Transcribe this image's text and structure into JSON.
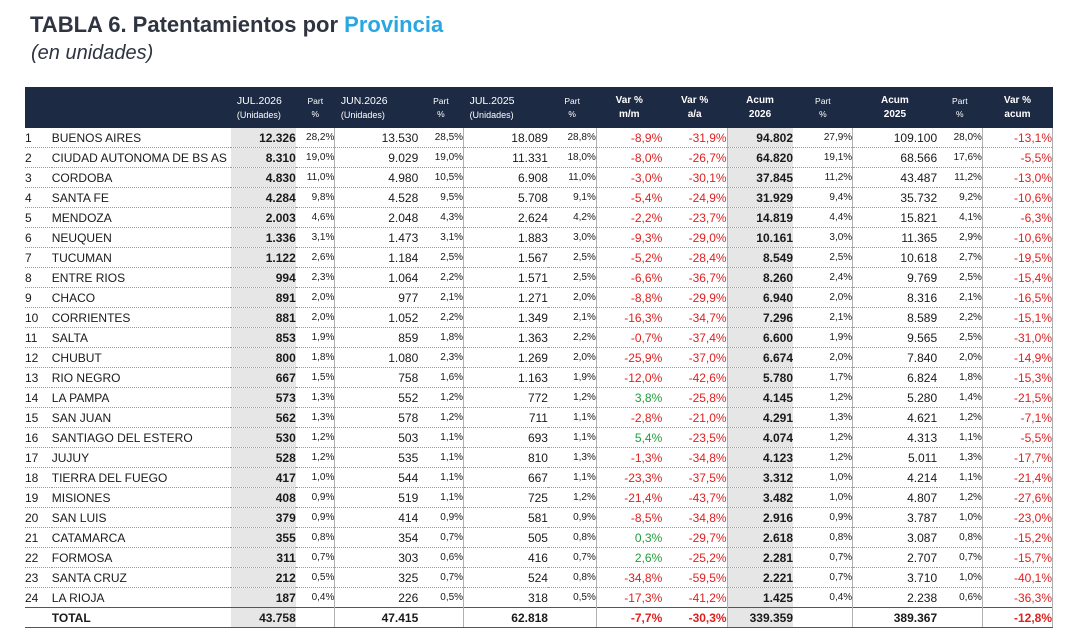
{
  "header": {
    "title_main": "TABLA 6. Patentamientos por ",
    "title_accent": "Provincia",
    "subtitle": "(en unidades)"
  },
  "columns": {
    "jul2026": "JUL.2026",
    "unidades1": "(Unidades)",
    "part": "Part",
    "pct": "%",
    "jun2026": "JUN.2026",
    "unidades2": "(Unidades)",
    "jul2025": "JUL.2025",
    "unidades3": "(Unidades)",
    "varmm1": "Var %",
    "varmm2": "m/m",
    "varaa1": "Var %",
    "varaa2": "a/a",
    "acum26_1": "Acum",
    "acum26_2": "2026",
    "acum25_1": "Acum",
    "acum25_2": "2025",
    "varac1": "Var %",
    "varac2": "acum"
  },
  "colors": {
    "header_bg": "#1d2a44",
    "accent": "#2aa6e0",
    "negative": "#e02020",
    "positive": "#1e9e3a",
    "shade": "#e6e6e6"
  },
  "rows": [
    [
      "1",
      "BUENOS AIRES",
      "12.326",
      "28,2%",
      "13.530",
      "28,5%",
      "18.089",
      "28,8%",
      "-8,9%",
      "-31,9%",
      "94.802",
      "27,9%",
      "109.100",
      "28,0%",
      "-13,1%"
    ],
    [
      "2",
      "CIUDAD AUTONOMA DE BS AS",
      "8.310",
      "19,0%",
      "9.029",
      "19,0%",
      "11.331",
      "18,0%",
      "-8,0%",
      "-26,7%",
      "64.820",
      "19,1%",
      "68.566",
      "17,6%",
      "-5,5%"
    ],
    [
      "3",
      "CORDOBA",
      "4.830",
      "11,0%",
      "4.980",
      "10,5%",
      "6.908",
      "11,0%",
      "-3,0%",
      "-30,1%",
      "37.845",
      "11,2%",
      "43.487",
      "11,2%",
      "-13,0%"
    ],
    [
      "4",
      "SANTA FE",
      "4.284",
      "9,8%",
      "4.528",
      "9,5%",
      "5.708",
      "9,1%",
      "-5,4%",
      "-24,9%",
      "31.929",
      "9,4%",
      "35.732",
      "9,2%",
      "-10,6%"
    ],
    [
      "5",
      "MENDOZA",
      "2.003",
      "4,6%",
      "2.048",
      "4,3%",
      "2.624",
      "4,2%",
      "-2,2%",
      "-23,7%",
      "14.819",
      "4,4%",
      "15.821",
      "4,1%",
      "-6,3%"
    ],
    [
      "6",
      "NEUQUEN",
      "1.336",
      "3,1%",
      "1.473",
      "3,1%",
      "1.883",
      "3,0%",
      "-9,3%",
      "-29,0%",
      "10.161",
      "3,0%",
      "11.365",
      "2,9%",
      "-10,6%"
    ],
    [
      "7",
      "TUCUMAN",
      "1.122",
      "2,6%",
      "1.184",
      "2,5%",
      "1.567",
      "2,5%",
      "-5,2%",
      "-28,4%",
      "8.549",
      "2,5%",
      "10.618",
      "2,7%",
      "-19,5%"
    ],
    [
      "8",
      "ENTRE RIOS",
      "994",
      "2,3%",
      "1.064",
      "2,2%",
      "1.571",
      "2,5%",
      "-6,6%",
      "-36,7%",
      "8.260",
      "2,4%",
      "9.769",
      "2,5%",
      "-15,4%"
    ],
    [
      "9",
      "CHACO",
      "891",
      "2,0%",
      "977",
      "2,1%",
      "1.271",
      "2,0%",
      "-8,8%",
      "-29,9%",
      "6.940",
      "2,0%",
      "8.316",
      "2,1%",
      "-16,5%"
    ],
    [
      "10",
      "CORRIENTES",
      "881",
      "2,0%",
      "1.052",
      "2,2%",
      "1.349",
      "2,1%",
      "-16,3%",
      "-34,7%",
      "7.296",
      "2,1%",
      "8.589",
      "2,2%",
      "-15,1%"
    ],
    [
      "11",
      "SALTA",
      "853",
      "1,9%",
      "859",
      "1,8%",
      "1.363",
      "2,2%",
      "-0,7%",
      "-37,4%",
      "6.600",
      "1,9%",
      "9.565",
      "2,5%",
      "-31,0%"
    ],
    [
      "12",
      "CHUBUT",
      "800",
      "1,8%",
      "1.080",
      "2,3%",
      "1.269",
      "2,0%",
      "-25,9%",
      "-37,0%",
      "6.674",
      "2,0%",
      "7.840",
      "2,0%",
      "-14,9%"
    ],
    [
      "13",
      "RIO NEGRO",
      "667",
      "1,5%",
      "758",
      "1,6%",
      "1.163",
      "1,9%",
      "-12,0%",
      "-42,6%",
      "5.780",
      "1,7%",
      "6.824",
      "1,8%",
      "-15,3%"
    ],
    [
      "14",
      "LA PAMPA",
      "573",
      "1,3%",
      "552",
      "1,2%",
      "772",
      "1,2%",
      "3,8%",
      "-25,8%",
      "4.145",
      "1,2%",
      "5.280",
      "1,4%",
      "-21,5%"
    ],
    [
      "15",
      "SAN JUAN",
      "562",
      "1,3%",
      "578",
      "1,2%",
      "711",
      "1,1%",
      "-2,8%",
      "-21,0%",
      "4.291",
      "1,3%",
      "4.621",
      "1,2%",
      "-7,1%"
    ],
    [
      "16",
      "SANTIAGO DEL ESTERO",
      "530",
      "1,2%",
      "503",
      "1,1%",
      "693",
      "1,1%",
      "5,4%",
      "-23,5%",
      "4.074",
      "1,2%",
      "4.313",
      "1,1%",
      "-5,5%"
    ],
    [
      "17",
      "JUJUY",
      "528",
      "1,2%",
      "535",
      "1,1%",
      "810",
      "1,3%",
      "-1,3%",
      "-34,8%",
      "4.123",
      "1,2%",
      "5.011",
      "1,3%",
      "-17,7%"
    ],
    [
      "18",
      "TIERRA DEL FUEGO",
      "417",
      "1,0%",
      "544",
      "1,1%",
      "667",
      "1,1%",
      "-23,3%",
      "-37,5%",
      "3.312",
      "1,0%",
      "4.214",
      "1,1%",
      "-21,4%"
    ],
    [
      "19",
      "MISIONES",
      "408",
      "0,9%",
      "519",
      "1,1%",
      "725",
      "1,2%",
      "-21,4%",
      "-43,7%",
      "3.482",
      "1,0%",
      "4.807",
      "1,2%",
      "-27,6%"
    ],
    [
      "20",
      "SAN LUIS",
      "379",
      "0,9%",
      "414",
      "0,9%",
      "581",
      "0,9%",
      "-8,5%",
      "-34,8%",
      "2.916",
      "0,9%",
      "3.787",
      "1,0%",
      "-23,0%"
    ],
    [
      "21",
      "CATAMARCA",
      "355",
      "0,8%",
      "354",
      "0,7%",
      "505",
      "0,8%",
      "0,3%",
      "-29,7%",
      "2.618",
      "0,8%",
      "3.087",
      "0,8%",
      "-15,2%"
    ],
    [
      "22",
      "FORMOSA",
      "311",
      "0,7%",
      "303",
      "0,6%",
      "416",
      "0,7%",
      "2,6%",
      "-25,2%",
      "2.281",
      "0,7%",
      "2.707",
      "0,7%",
      "-15,7%"
    ],
    [
      "23",
      "SANTA CRUZ",
      "212",
      "0,5%",
      "325",
      "0,7%",
      "524",
      "0,8%",
      "-34,8%",
      "-59,5%",
      "2.221",
      "0,7%",
      "3.710",
      "1,0%",
      "-40,1%"
    ],
    [
      "24",
      "LA RIOJA",
      "187",
      "0,4%",
      "226",
      "0,5%",
      "318",
      "0,5%",
      "-17,3%",
      "-41,2%",
      "1.425",
      "0,4%",
      "2.238",
      "0,6%",
      "-36,3%"
    ]
  ],
  "total": [
    "TOTAL",
    "43.758",
    "47.415",
    "62.818",
    "-7,7%",
    "-30,3%",
    "339.359",
    "389.367",
    "-12,8%"
  ]
}
